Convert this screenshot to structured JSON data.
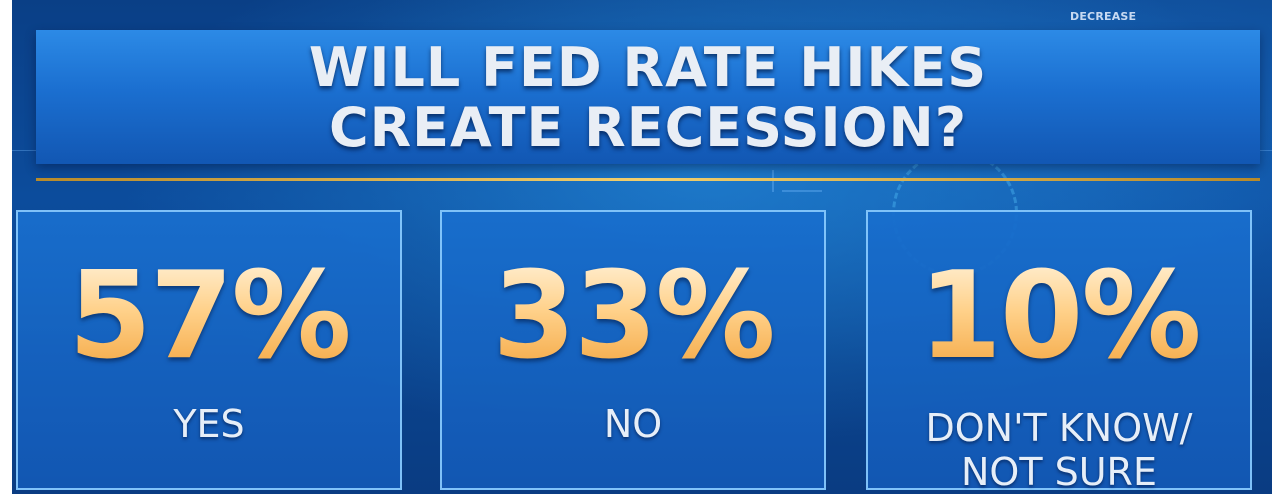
{
  "background": {
    "corner_text": "DECREASE"
  },
  "title": {
    "line1": "WILL FED RATE HIKES",
    "line2": "CREATE RECESSION?"
  },
  "colors": {
    "background": "#0b4590",
    "banner": "#1b6fd0",
    "gold_rule": "#f1cf6e",
    "percent_gradient_top": "#fff3dc",
    "percent_gradient_bottom": "#f2a23a",
    "card_border": "#8ccdff",
    "label_text": "#e6eef8"
  },
  "chart_data": {
    "type": "table",
    "title": "WILL FED RATE HIKES CREATE RECESSION?",
    "categories": [
      "YES",
      "NO",
      "DON'T KNOW/ NOT SURE"
    ],
    "values": [
      57,
      33,
      10
    ]
  },
  "results": [
    {
      "percent": "57%",
      "label": "YES"
    },
    {
      "percent": "33%",
      "label": "NO"
    },
    {
      "percent": "10%",
      "label_line1": "DON'T KNOW/",
      "label_line2": "NOT SURE"
    }
  ]
}
